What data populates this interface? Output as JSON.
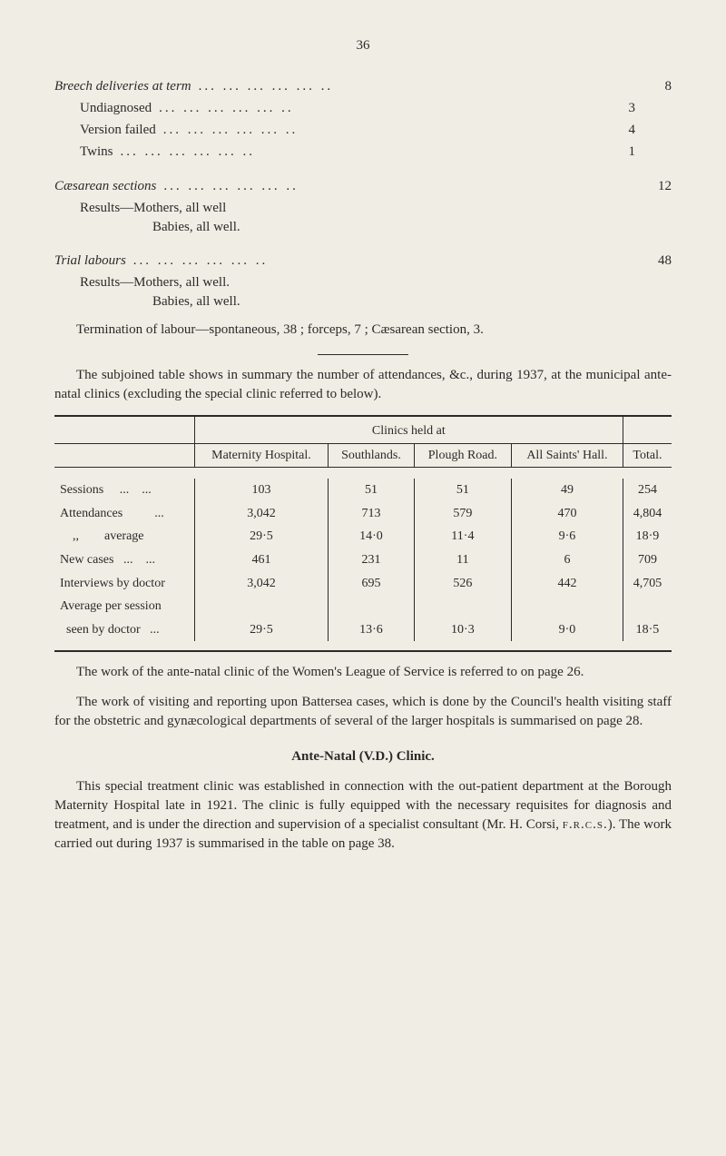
{
  "page_number": "36",
  "breech": {
    "title": "Breech deliveries at term",
    "total": "8",
    "items": [
      {
        "label": "Undiagnosed",
        "value": "3"
      },
      {
        "label": "Version failed",
        "value": "4"
      },
      {
        "label": "Twins",
        "value": "1"
      }
    ]
  },
  "caesarean": {
    "title": "Cæsarean sections",
    "total": "12",
    "results_label": "Results—Mothers, all well",
    "results_sub": "Babies, all well."
  },
  "trial": {
    "title": "Trial labours",
    "total": "48",
    "results_label": "Results—Mothers, all well.",
    "results_sub": "Babies, all well.",
    "termination": "Termination of labour—spontaneous, 38 ; forceps, 7 ; Cæsarean section, 3."
  },
  "subjoined_para": "The subjoined table shows in summary the number of attendances, &c., during 1937, at the municipal ante-natal clinics (excluding the special clinic referred to below).",
  "table": {
    "header_group": "Clinics held at",
    "columns": [
      "Maternity Hospital.",
      "Southlands.",
      "Plough Road.",
      "All Saints' Hall."
    ],
    "total_col": "Total.",
    "rows": [
      {
        "label": "Sessions     ...    ...",
        "vals": [
          "103",
          "51",
          "51",
          "49"
        ],
        "total": "254"
      },
      {
        "label": "Attendances          ...",
        "vals": [
          "3,042",
          "713",
          "579",
          "470"
        ],
        "total": "4,804"
      },
      {
        "label": "    ,,        average",
        "vals": [
          "29·5",
          "14·0",
          "11·4",
          "9·6"
        ],
        "total": "18·9"
      },
      {
        "label": "New cases   ...    ...",
        "vals": [
          "461",
          "231",
          "11",
          "6"
        ],
        "total": "709"
      },
      {
        "label": "Interviews by doctor",
        "vals": [
          "3,042",
          "695",
          "526",
          "442"
        ],
        "total": "4,705"
      },
      {
        "label": "Average per session",
        "vals": [
          "",
          "",
          "",
          ""
        ],
        "total": ""
      },
      {
        "label": "  seen by doctor   ...",
        "vals": [
          "29·5",
          "13·6",
          "10·3",
          "9·0"
        ],
        "total": "18·5"
      }
    ]
  },
  "para_league": "The work of the ante-natal clinic of the Women's League of Service is referred to on page 26.",
  "para_battersea": "The work of visiting and reporting upon Battersea cases, which is done by the Council's health visiting staff for the obstetric and gynæcological departments of several of the larger hospitals is summarised on page 28.",
  "vd_heading": "Ante-Natal (V.D.) Clinic.",
  "vd_para_a": "This special treatment clinic was established in connection with the out-patient department at the Borough Maternity Hospital late in 1921. The clinic is fully equipped with the necessary requisites for diagnosis and treatment, and is under the direction and supervision of a specialist consultant (Mr. H. Corsi, ",
  "vd_frcs": "f.r.c.s.",
  "vd_para_b": "). The work carried out during 1937 is summarised in the table on page 38."
}
